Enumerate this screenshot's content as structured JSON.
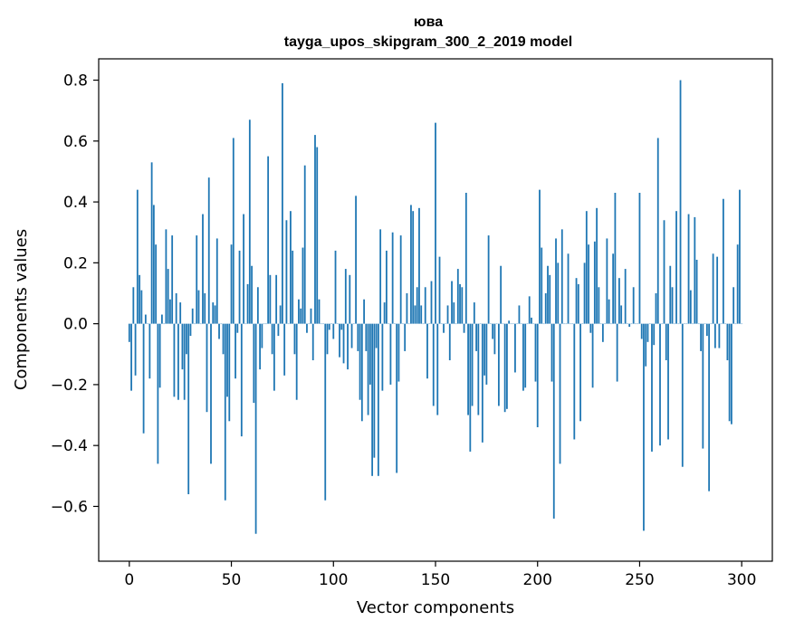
{
  "chart_data": {
    "type": "bar",
    "title": "юва",
    "subtitle": "tayga_upos_skipgram_300_2_2019 model",
    "xlabel": "Vector components",
    "ylabel": "Components values",
    "xlim": [
      -15,
      315
    ],
    "ylim": [
      -0.78,
      0.87
    ],
    "xticks": [
      0,
      50,
      100,
      150,
      200,
      250,
      300
    ],
    "xtick_labels": [
      "0",
      "50",
      "100",
      "150",
      "200",
      "250",
      "300"
    ],
    "yticks": [
      -0.6,
      -0.4,
      -0.2,
      0.0,
      0.2,
      0.4,
      0.6,
      0.8
    ],
    "ytick_labels": [
      "−0.6",
      "−0.4",
      "−0.2",
      "0.0",
      "0.2",
      "0.4",
      "0.6",
      "0.8"
    ],
    "bar_color": "#1f77b4",
    "grid": false,
    "values": [
      -0.06,
      -0.22,
      0.12,
      -0.17,
      0.44,
      0.16,
      0.11,
      -0.36,
      0.03,
      0.0,
      -0.18,
      0.53,
      0.39,
      0.26,
      -0.46,
      -0.21,
      0.03,
      0.0,
      0.31,
      0.18,
      0.08,
      0.29,
      -0.24,
      0.1,
      -0.25,
      0.07,
      -0.15,
      -0.25,
      -0.1,
      -0.56,
      -0.04,
      0.05,
      0.0,
      0.29,
      0.11,
      0.0,
      0.36,
      0.1,
      -0.29,
      0.48,
      -0.46,
      0.07,
      0.06,
      0.28,
      -0.05,
      0.0,
      -0.1,
      -0.58,
      -0.24,
      -0.32,
      0.26,
      0.61,
      -0.18,
      -0.03,
      0.24,
      -0.37,
      0.36,
      0.0,
      0.13,
      0.67,
      0.19,
      -0.26,
      -0.69,
      0.12,
      -0.15,
      -0.08,
      0.0,
      0.0,
      0.55,
      0.16,
      -0.1,
      -0.22,
      0.16,
      -0.04,
      0.06,
      0.79,
      -0.17,
      0.34,
      0.0,
      0.37,
      0.24,
      -0.1,
      -0.25,
      0.08,
      0.05,
      0.25,
      0.52,
      -0.03,
      0.0,
      0.05,
      -0.12,
      0.62,
      0.58,
      0.08,
      0.0,
      0.0,
      -0.58,
      -0.1,
      -0.02,
      0.0,
      -0.05,
      0.24,
      0.0,
      -0.11,
      -0.02,
      -0.13,
      0.18,
      -0.15,
      0.16,
      -0.08,
      0.0,
      0.42,
      -0.09,
      -0.25,
      -0.32,
      0.08,
      -0.09,
      -0.3,
      -0.2,
      -0.5,
      -0.44,
      -0.08,
      -0.5,
      0.31,
      -0.22,
      0.07,
      0.24,
      0.0,
      -0.2,
      0.3,
      0.0,
      -0.49,
      -0.19,
      0.29,
      0.0,
      -0.09,
      0.1,
      0.0,
      0.39,
      0.37,
      0.06,
      0.12,
      0.38,
      0.06,
      0.0,
      0.12,
      -0.18,
      0.0,
      0.14,
      -0.27,
      0.66,
      -0.3,
      0.22,
      0.0,
      -0.03,
      0.0,
      0.06,
      -0.12,
      0.14,
      0.07,
      0.0,
      0.18,
      0.13,
      0.12,
      -0.03,
      0.43,
      -0.3,
      -0.42,
      -0.27,
      0.07,
      -0.09,
      -0.3,
      0.0,
      -0.39,
      -0.17,
      -0.2,
      0.29,
      0.0,
      -0.05,
      -0.1,
      0.0,
      -0.27,
      0.19,
      0.0,
      -0.29,
      -0.28,
      0.01,
      0.0,
      0.0,
      -0.16,
      0.0,
      0.06,
      0.0,
      -0.22,
      -0.21,
      0.0,
      0.09,
      0.02,
      0.0,
      -0.19,
      -0.34,
      0.44,
      0.25,
      0.0,
      0.1,
      0.19,
      0.16,
      -0.19,
      -0.64,
      0.28,
      0.2,
      -0.46,
      0.31,
      0.0,
      0.0,
      0.23,
      0.0,
      0.0,
      -0.38,
      0.15,
      0.13,
      -0.32,
      0.0,
      0.2,
      0.37,
      0.26,
      -0.03,
      -0.21,
      0.27,
      0.38,
      0.12,
      0.0,
      -0.06,
      0.0,
      0.28,
      0.08,
      0.0,
      0.23,
      0.43,
      -0.19,
      0.15,
      0.06,
      0.0,
      0.18,
      0.0,
      -0.01,
      0.0,
      0.12,
      0.0,
      0.0,
      0.43,
      -0.05,
      -0.68,
      -0.14,
      -0.06,
      0.0,
      -0.42,
      -0.07,
      0.1,
      0.61,
      -0.4,
      0.0,
      0.34,
      -0.12,
      -0.38,
      0.19,
      0.12,
      0.0,
      0.37,
      0.0,
      0.8,
      -0.47,
      0.0,
      0.0,
      0.36,
      0.11,
      0.0,
      0.35,
      0.21,
      0.0,
      -0.09,
      -0.41,
      0.0,
      -0.04,
      -0.55,
      0.0,
      0.23,
      -0.08,
      0.22,
      -0.08,
      0.0,
      0.41,
      0.0,
      -0.12,
      -0.32,
      -0.33,
      0.12,
      0.0,
      0.26,
      0.44,
      0.0
    ]
  }
}
